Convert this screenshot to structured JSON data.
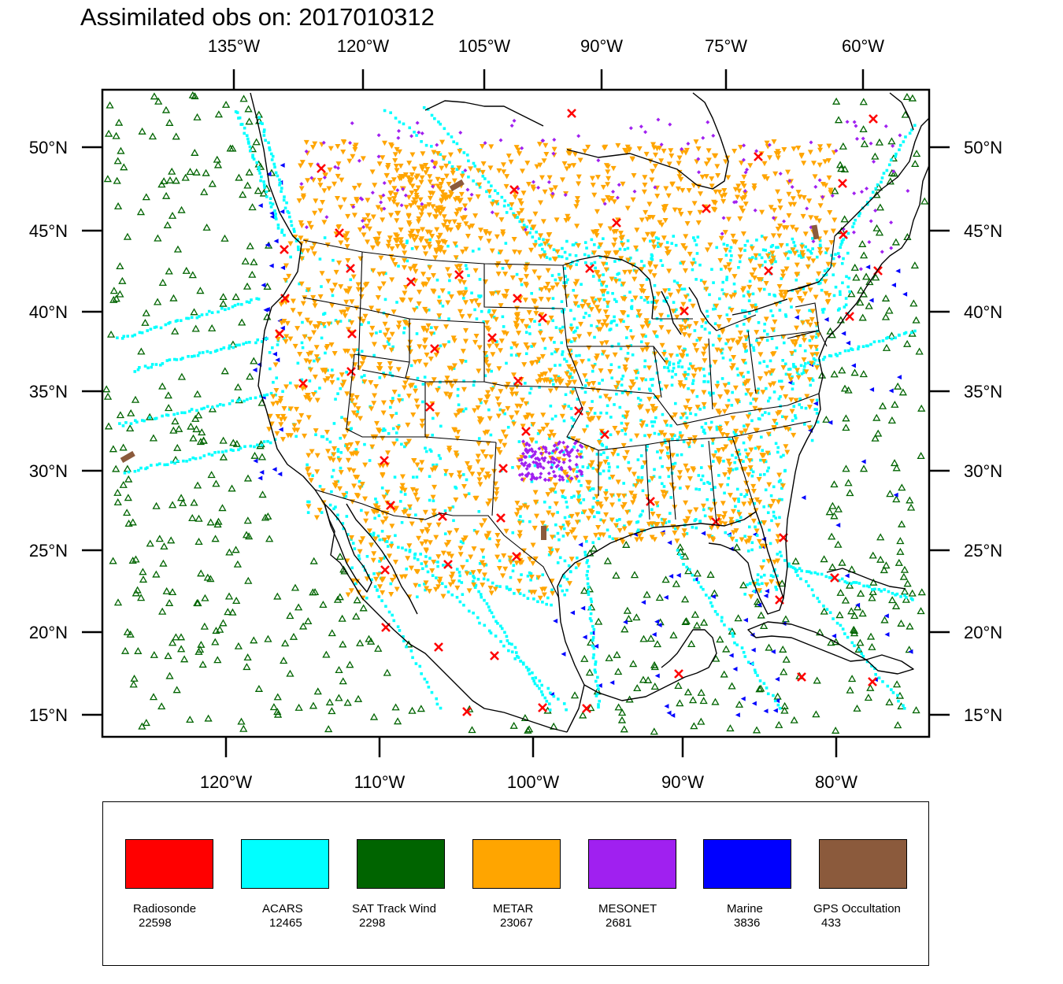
{
  "title": "Assimilated obs on: 2017010312",
  "map": {
    "top_lon_labels": [
      "135°W",
      "120°W",
      "105°W",
      "90°W",
      "75°W",
      "60°W"
    ],
    "bottom_lon_labels": [
      "120°W",
      "110°W",
      "100°W",
      "90°W",
      "80°W"
    ],
    "lat_labels": [
      "50°N",
      "45°N",
      "40°N",
      "35°N",
      "30°N",
      "25°N",
      "20°N",
      "15°N"
    ]
  },
  "legend": [
    {
      "name": "Radiosonde",
      "count": "22598",
      "color": "#ff0000"
    },
    {
      "name": "ACARS",
      "count": "12465",
      "color": "#00ffff"
    },
    {
      "name": "SAT Track Wind",
      "count": "2298",
      "color": "#006400"
    },
    {
      "name": "METAR",
      "count": "23067",
      "color": "#ffa500"
    },
    {
      "name": "MESONET",
      "count": "2681",
      "color": "#a020f0"
    },
    {
      "name": "Marine",
      "count": "3836",
      "color": "#0000ff"
    },
    {
      "name": "GPS Occultation",
      "count": "433",
      "color": "#8b5a3c"
    }
  ],
  "colors": {
    "radiosonde": "#ff0000",
    "acars": "#00ffff",
    "sat_track_wind": "#006400",
    "metar": "#ffa500",
    "mesonet": "#a020f0",
    "marine": "#0000ff",
    "gps": "#8b5a3c"
  }
}
